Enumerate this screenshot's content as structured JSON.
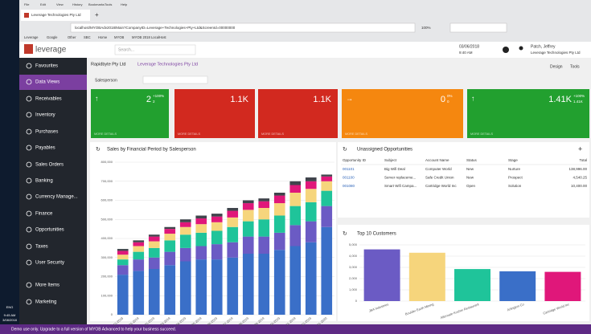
{
  "browser": {
    "menu": [
      "File",
      "Edit",
      "View",
      "History",
      "Bookmarks",
      "Tools",
      "Help"
    ],
    "tab": "Leverage Technologies Pty Ltd",
    "url": "localhost/MYOBAdv2018/Main?CompanyID=Leverage+Technologies+Pty+Ltd&ScreenId=00000000",
    "zoom": "100%",
    "bookmarks": [
      "Leverage",
      "Google",
      "Other",
      "SBC",
      "Home",
      "MYOB",
      "MYOB 2018 LocalHost"
    ]
  },
  "taskbar": {
    "language": "ENG",
    "time": "9:45 AM",
    "date": "3/08/2018"
  },
  "header": {
    "logo": "leverage",
    "search": "Search...",
    "date": "03/06/2018",
    "time": "9:40 AM",
    "user": "Patch, Jeffrey",
    "company": "Leverage Technologies Pty Ltd"
  },
  "sidebar": [
    "Favourites",
    "Data Views",
    "Receivables",
    "Inventory",
    "Purchases",
    "Payables",
    "Sales Orders",
    "Banking",
    "Currency Manage...",
    "Finance",
    "Opportunities",
    "Taxes",
    "User Security",
    "More Items",
    "Marketing"
  ],
  "breadcrumb": [
    "Rapidbyte Pty Ltd",
    "Leverage Technologies Pty Ltd"
  ],
  "toolbar": [
    "Design",
    "Tools"
  ],
  "filter_label": "Salesperson",
  "tile_footer": "MORE DETAILS",
  "tiles": [
    {
      "value": "2",
      "change": "+100%",
      "sub": "2",
      "color": "#22a02f"
    },
    {
      "value": "1.1K",
      "color": "#d2291f"
    },
    {
      "value": "1.1K",
      "color": "#d2291f"
    },
    {
      "value": "0",
      "change": "0%",
      "sub": "0",
      "color": "#f5870f"
    },
    {
      "value": "1.41K",
      "change": "+100%",
      "sub": "1.41K",
      "color": "#22a02f"
    }
  ],
  "opportunities": {
    "title": "Unassigned Opportunities",
    "columns": [
      "Opportunity ID",
      "Subject",
      "Account Name",
      "Status",
      "Stage",
      "Total"
    ],
    "rows": [
      [
        "001101",
        "Big Wifi Deal",
        "Computer World",
        "New",
        "Nurture",
        "138,996.00"
      ],
      [
        "001100",
        "Server replaceme...",
        "Safe Credit Union",
        "New",
        "Prospect",
        "4,540.25"
      ],
      [
        "001080",
        "Smart Wifi Campa...",
        "Cartridge World Inc",
        "Open",
        "Solution",
        "10,400.00"
      ]
    ]
  },
  "chart_data": [
    {
      "type": "stacked_bar",
      "title": "Sales by Financial Period by Salesperson",
      "categories": [
        "12-2018",
        "01-2019",
        "02-2019",
        "03-2019",
        "04-2019",
        "05-2019",
        "06-2019",
        "07-2019",
        "08-2019",
        "09-2019",
        "10-2019",
        "11-2019",
        "12-2019",
        "01-2020"
      ],
      "series": [
        {
          "color": "#3a6fc8",
          "values": [
            210,
            230,
            240,
            260,
            280,
            290,
            290,
            300,
            320,
            320,
            340,
            360,
            380,
            460
          ]
        },
        {
          "color": "#6b5bc4",
          "values": [
            50,
            60,
            60,
            70,
            70,
            70,
            80,
            80,
            90,
            90,
            90,
            110,
            110,
            110
          ]
        },
        {
          "color": "#1fc49a",
          "values": [
            30,
            40,
            50,
            60,
            70,
            70,
            70,
            80,
            80,
            90,
            90,
            100,
            100,
            80
          ]
        },
        {
          "color": "#f6d57c",
          "values": [
            25,
            30,
            35,
            35,
            40,
            45,
            45,
            50,
            60,
            60,
            65,
            70,
            70,
            50
          ]
        },
        {
          "color": "#e0177a",
          "values": [
            20,
            20,
            25,
            25,
            25,
            30,
            30,
            35,
            35,
            35,
            40,
            40,
            40,
            25
          ]
        },
        {
          "color": "#40444c",
          "values": [
            10,
            10,
            10,
            10,
            15,
            15,
            15,
            15,
            15,
            15,
            15,
            20,
            20,
            10
          ]
        }
      ],
      "value_scale": 1000,
      "ylim": [
        0,
        800000
      ],
      "yticks": [
        0,
        {
          "value": 100000,
          "label": "100,000"
        },
        {
          "value": 200000,
          "label": "200,000"
        },
        {
          "value": 300000,
          "label": "300,000"
        },
        {
          "value": 400000,
          "label": "400,000"
        },
        {
          "value": 500000,
          "label": "500,000"
        },
        {
          "value": 600000,
          "label": "600,000"
        },
        {
          "value": 700000,
          "label": "700,000"
        },
        {
          "value": 800000,
          "label": "800,000"
        }
      ],
      "grid": true
    },
    {
      "type": "bar",
      "title": "Top 10 Customers",
      "categories": [
        "JBA Industries",
        "Boulder Earth Mining",
        "Alternate Kosher Restaurant",
        "Arlington Co",
        "Cartridge World Inc"
      ],
      "values": [
        4600,
        4300,
        2850,
        2650,
        2600
      ],
      "colors": [
        "#6b5bc4",
        "#f6d57c",
        "#1fc49a",
        "#3a6fc8",
        "#e0177a"
      ],
      "ylim": [
        0,
        5000
      ],
      "yticks": [
        0,
        {
          "value": 1000,
          "label": "1,000"
        },
        {
          "value": 2000,
          "label": "2,000"
        },
        {
          "value": 3000,
          "label": "3,000"
        },
        {
          "value": 4000,
          "label": "4,000"
        },
        {
          "value": 5000,
          "label": "5,000"
        }
      ],
      "grid": true
    }
  ],
  "banner": "Demo use only. Upgrade to a full version of MYOB Advanced to help your business succeed."
}
